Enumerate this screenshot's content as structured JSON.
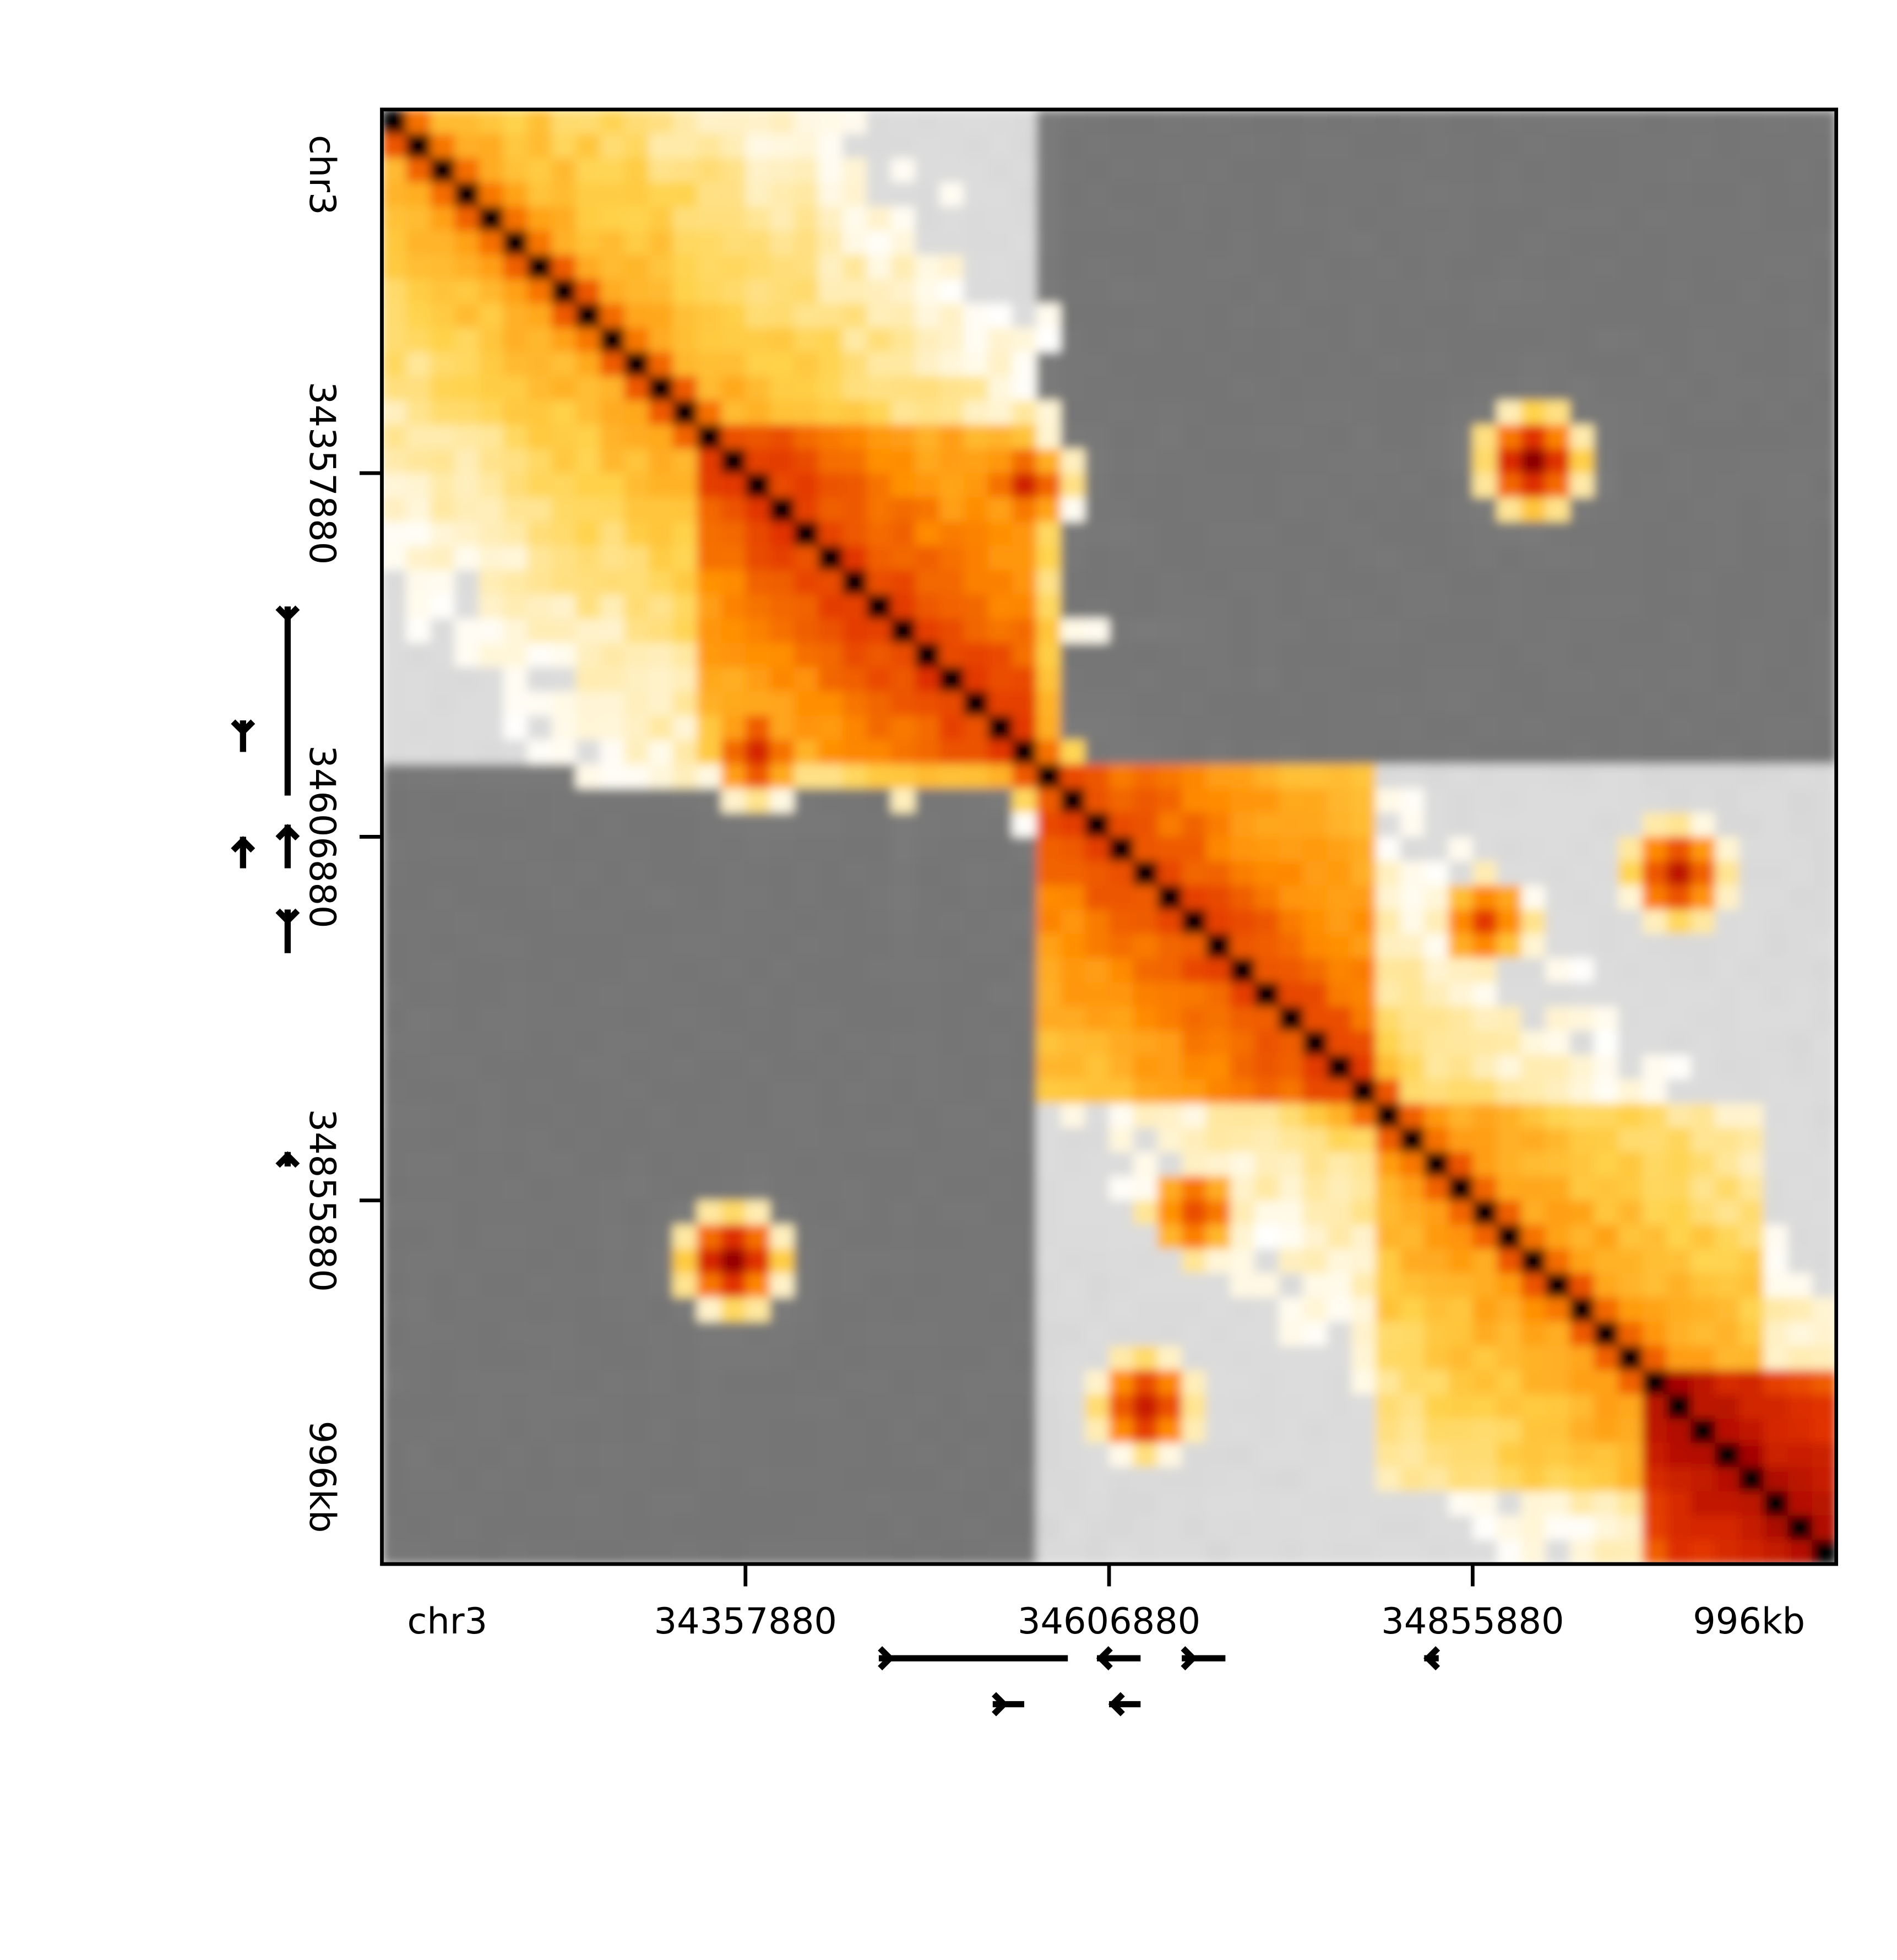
{
  "chart_data": {
    "type": "heatmap",
    "title": "",
    "matrix_size": 60,
    "diagonal_value": 1.0,
    "domains": [
      {
        "start": 0,
        "end": 28,
        "strength": 0.55
      },
      {
        "start": 13,
        "end": 27,
        "strength": 0.72
      },
      {
        "start": 27,
        "end": 60,
        "strength": 0.45
      },
      {
        "start": 27,
        "end": 41,
        "strength": 0.7
      },
      {
        "start": 41,
        "end": 57,
        "strength": 0.58
      },
      {
        "start": 52,
        "end": 60,
        "strength": 0.85
      }
    ],
    "peaks": [
      {
        "a": 26,
        "b": 15,
        "value": 0.75
      },
      {
        "a": 53,
        "b": 31,
        "value": 0.8
      },
      {
        "a": 47,
        "b": 14,
        "value": 0.85
      },
      {
        "a": 23,
        "b": 21,
        "value": 0.65
      },
      {
        "a": 45,
        "b": 33,
        "value": 0.7
      }
    ],
    "stripes": [
      {
        "bin": 17,
        "value": 0.6
      },
      {
        "bin": 21,
        "value": 0.62
      },
      {
        "bin": 41,
        "value": 0.55
      }
    ],
    "x_ticks": [
      "chr3",
      "34357880",
      "34606880",
      "34855880",
      "996kb"
    ],
    "y_ticks": [
      "chr3",
      "34357880",
      "34606880",
      "34855880",
      "996kb"
    ],
    "colormap": [
      "#ffffff",
      "#ffd24a",
      "#ff8c00",
      "#e03000",
      "#a00000",
      "#000000"
    ],
    "background_colors": [
      "#dcdcdc",
      "#7a7a7a"
    ],
    "grid": false,
    "legend": "none"
  },
  "genes_top": [
    {
      "row": 0,
      "start": 20.5,
      "end": 28.3,
      "dir": "right"
    },
    {
      "row": 0,
      "start": 29.5,
      "end": 31.3,
      "dir": "left"
    },
    {
      "row": 0,
      "start": 33.0,
      "end": 34.8,
      "dir": "right"
    },
    {
      "row": 0,
      "start": 43.0,
      "end": 43.6,
      "dir": "left"
    },
    {
      "row": 1,
      "start": 25.2,
      "end": 26.5,
      "dir": "right"
    },
    {
      "row": 1,
      "start": 30.0,
      "end": 31.3,
      "dir": "left"
    }
  ],
  "genes_left": [
    {
      "row": 0,
      "start": 20.5,
      "end": 28.3,
      "dir": "right"
    },
    {
      "row": 0,
      "start": 29.5,
      "end": 31.3,
      "dir": "left"
    },
    {
      "row": 0,
      "start": 33.0,
      "end": 34.8,
      "dir": "right"
    },
    {
      "row": 0,
      "start": 43.0,
      "end": 43.6,
      "dir": "left"
    },
    {
      "row": 1,
      "start": 25.2,
      "end": 26.5,
      "dir": "right"
    },
    {
      "row": 1,
      "start": 30.0,
      "end": 31.3,
      "dir": "left"
    }
  ]
}
